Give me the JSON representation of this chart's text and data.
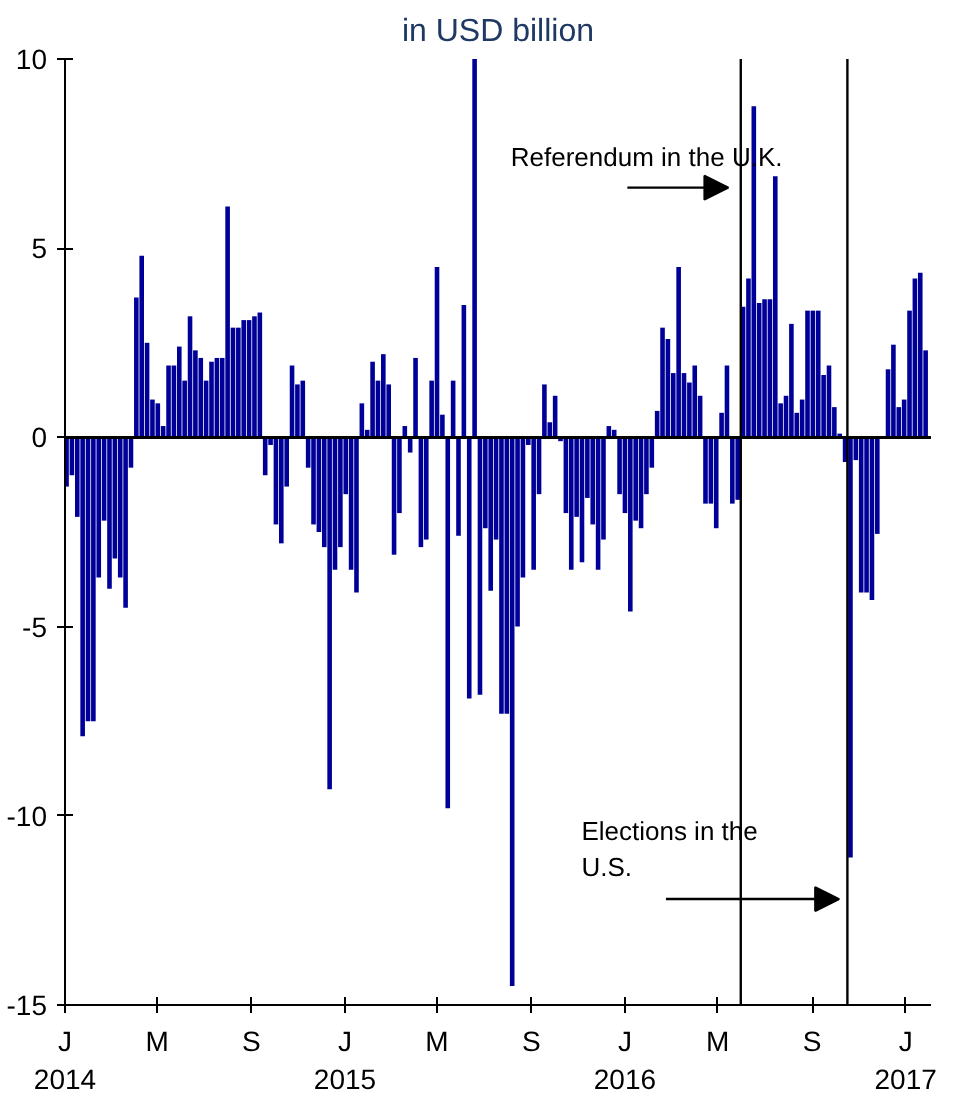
{
  "chart_data": {
    "type": "bar",
    "title": "in USD billion",
    "color": "#000099",
    "x": [
      "2014-01-03",
      "2014-01-10",
      "2014-01-17",
      "2014-01-24",
      "2014-01-31",
      "2014-02-07",
      "2014-02-14",
      "2014-02-21",
      "2014-02-28",
      "2014-03-07",
      "2014-03-14",
      "2014-03-21",
      "2014-03-28",
      "2014-04-04",
      "2014-04-11",
      "2014-04-18",
      "2014-04-25",
      "2014-05-02",
      "2014-05-09",
      "2014-05-16",
      "2014-05-23",
      "2014-05-30",
      "2014-06-06",
      "2014-06-13",
      "2014-06-20",
      "2014-06-27",
      "2014-07-04",
      "2014-07-11",
      "2014-07-18",
      "2014-07-25",
      "2014-08-01",
      "2014-08-08",
      "2014-08-15",
      "2014-08-22",
      "2014-08-29",
      "2014-09-05",
      "2014-09-12",
      "2014-09-19",
      "2014-09-26",
      "2014-10-03",
      "2014-10-10",
      "2014-10-17",
      "2014-10-24",
      "2014-10-31",
      "2014-11-07",
      "2014-11-14",
      "2014-11-21",
      "2014-11-28",
      "2014-12-05",
      "2014-12-12",
      "2014-12-19",
      "2014-12-26",
      "2015-01-02",
      "2015-01-09",
      "2015-01-16",
      "2015-01-23",
      "2015-01-30",
      "2015-02-06",
      "2015-02-13",
      "2015-02-20",
      "2015-02-27",
      "2015-03-06",
      "2015-03-13",
      "2015-03-20",
      "2015-03-27",
      "2015-04-03",
      "2015-04-10",
      "2015-04-17",
      "2015-04-24",
      "2015-05-01",
      "2015-05-08",
      "2015-05-15",
      "2015-05-22",
      "2015-05-29",
      "2015-06-05",
      "2015-06-12",
      "2015-06-19",
      "2015-06-26",
      "2015-07-03",
      "2015-07-10",
      "2015-07-17",
      "2015-07-24",
      "2015-07-31",
      "2015-08-07",
      "2015-08-14",
      "2015-08-21",
      "2015-08-28",
      "2015-09-04",
      "2015-09-11",
      "2015-09-18",
      "2015-09-25",
      "2015-10-02",
      "2015-10-09",
      "2015-10-16",
      "2015-10-23",
      "2015-10-30",
      "2015-11-06",
      "2015-11-13",
      "2015-11-20",
      "2015-11-27",
      "2015-12-04",
      "2015-12-11",
      "2015-12-18",
      "2015-12-25",
      "2016-01-01",
      "2016-01-08",
      "2016-01-15",
      "2016-01-22",
      "2016-01-29",
      "2016-02-05",
      "2016-02-12",
      "2016-02-19",
      "2016-02-26",
      "2016-03-04",
      "2016-03-11",
      "2016-03-18",
      "2016-03-25",
      "2016-04-01",
      "2016-04-08",
      "2016-04-15",
      "2016-04-22",
      "2016-04-29",
      "2016-05-06",
      "2016-05-13",
      "2016-05-20",
      "2016-05-27",
      "2016-06-03",
      "2016-06-10",
      "2016-06-17",
      "2016-06-24",
      "2016-07-01",
      "2016-07-08",
      "2016-07-15",
      "2016-07-22",
      "2016-07-29",
      "2016-08-05",
      "2016-08-12",
      "2016-08-19",
      "2016-08-26",
      "2016-09-02",
      "2016-09-09",
      "2016-09-16",
      "2016-09-23",
      "2016-09-30",
      "2016-10-07",
      "2016-10-14",
      "2016-10-21",
      "2016-10-28",
      "2016-11-04",
      "2016-11-11",
      "2016-11-18",
      "2016-11-25",
      "2016-12-02",
      "2016-12-09",
      "2016-12-16",
      "2016-12-23",
      "2016-12-30",
      "2017-01-06",
      "2017-01-13",
      "2017-01-20",
      "2017-01-27"
    ],
    "values": [
      -1.3,
      -1.0,
      -2.1,
      -7.9,
      -7.5,
      -7.5,
      -3.7,
      -2.2,
      -4.0,
      -3.2,
      -3.7,
      -4.5,
      -0.8,
      3.7,
      4.8,
      2.5,
      1.0,
      0.9,
      0.3,
      1.9,
      1.9,
      2.4,
      1.5,
      3.2,
      2.3,
      2.1,
      1.5,
      2.0,
      2.1,
      2.1,
      6.1,
      2.9,
      2.9,
      3.1,
      3.1,
      3.2,
      3.3,
      -1.0,
      -0.2,
      -2.3,
      -2.8,
      -1.3,
      1.9,
      1.4,
      1.5,
      -0.8,
      -2.3,
      -2.5,
      -2.9,
      -9.3,
      -3.5,
      -2.9,
      -1.5,
      -3.5,
      -4.1,
      0.9,
      0.2,
      2.0,
      1.5,
      2.2,
      1.4,
      -3.1,
      -2.0,
      0.3,
      -0.4,
      2.1,
      -2.9,
      -2.7,
      1.5,
      4.5,
      0.6,
      -9.8,
      1.5,
      -2.6,
      3.5,
      -6.9,
      10.0,
      -6.8,
      -2.4,
      -4.05,
      -2.7,
      -7.3,
      -7.3,
      -14.5,
      -5.0,
      -3.7,
      -0.2,
      -3.5,
      -1.5,
      1.4,
      0.4,
      1.1,
      -0.1,
      -2.0,
      -3.5,
      -2.1,
      -3.3,
      -1.6,
      -2.3,
      -3.5,
      -2.7,
      0.3,
      0.2,
      -1.5,
      -2.0,
      -4.6,
      -2.2,
      -2.4,
      -1.5,
      -0.8,
      0.7,
      2.9,
      2.6,
      1.7,
      4.5,
      1.7,
      1.45,
      1.9,
      1.1,
      -1.75,
      -1.75,
      -2.4,
      0.65,
      1.9,
      -1.75,
      -1.65,
      3.45,
      4.2,
      8.75,
      3.55,
      3.65,
      3.65,
      6.9,
      0.9,
      1.1,
      3.0,
      0.65,
      1.0,
      3.35,
      3.35,
      3.35,
      1.65,
      1.9,
      0.8,
      0.1,
      -0.65,
      -11.1,
      -0.6,
      -4.1,
      -4.1,
      -4.3,
      -2.55,
      0,
      1.8,
      2.45,
      0.8,
      1.0,
      3.35,
      4.2,
      4.35,
      2.3
    ],
    "xlim": [
      "2014-01-01",
      "2017-02-03"
    ],
    "xticks": [
      {
        "value": "2014-01-01",
        "label": "J\n2014"
      },
      {
        "value": "2014-05-01",
        "label": "M"
      },
      {
        "value": "2014-09-01",
        "label": "S"
      },
      {
        "value": "2015-01-01",
        "label": "J\n2015"
      },
      {
        "value": "2015-05-01",
        "label": "M"
      },
      {
        "value": "2015-09-01",
        "label": "S"
      },
      {
        "value": "2016-01-01",
        "label": "J\n2016"
      },
      {
        "value": "2016-05-01",
        "label": "M"
      },
      {
        "value": "2016-09-01",
        "label": "S"
      },
      {
        "value": "2017-01-01",
        "label": "J\n2017"
      }
    ],
    "ylim": [
      -15,
      10
    ],
    "yticks": [
      -15,
      -10,
      -5,
      0,
      5,
      10
    ],
    "ref_lines": [
      {
        "axis": "y",
        "value": 0,
        "color": "#000000"
      },
      {
        "axis": "x",
        "value": "2016-05-31",
        "label": "Referendum in the U.K.",
        "color": "#000000"
      },
      {
        "axis": "x",
        "value": "2016-10-17",
        "label": "Elections in the\nU.S.",
        "color": "#000000"
      }
    ]
  }
}
